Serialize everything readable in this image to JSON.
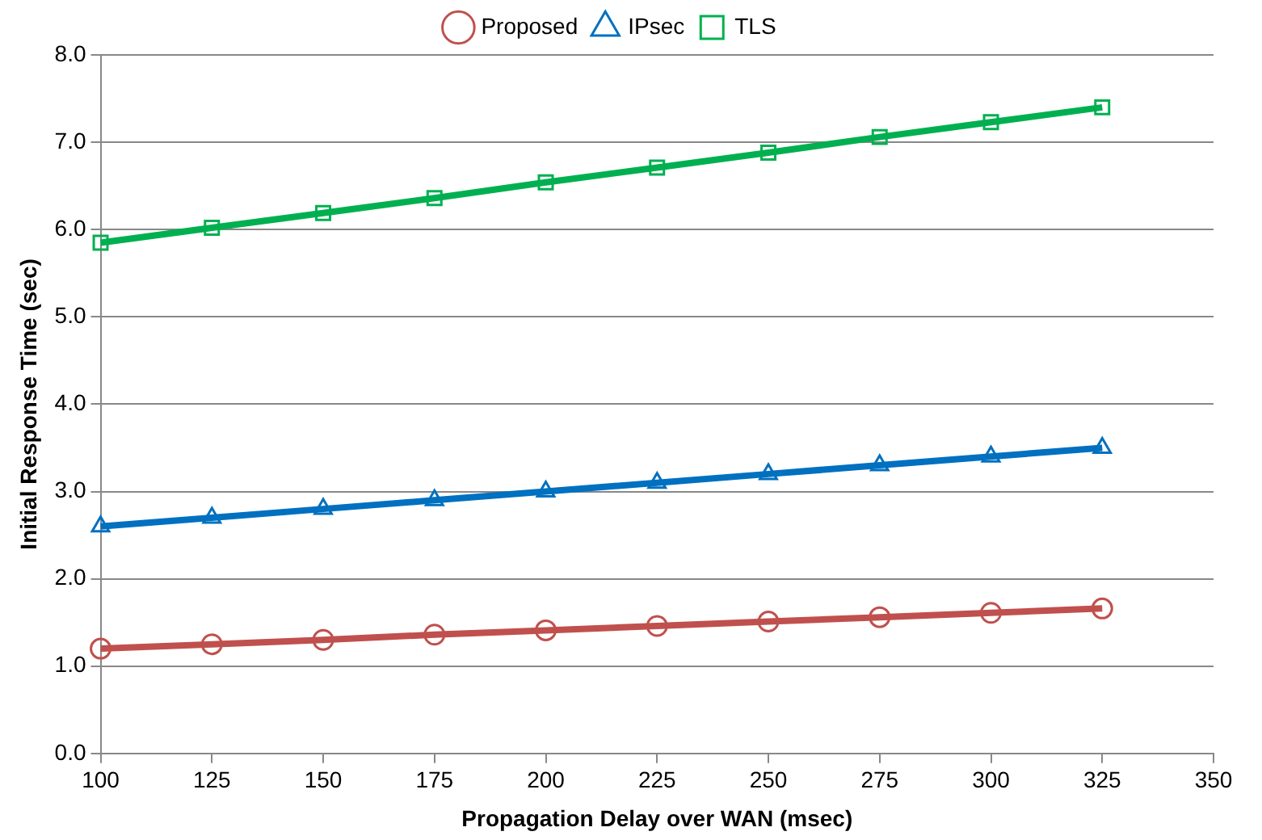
{
  "chart_data": {
    "type": "line",
    "xlabel": "Propagation Delay over WAN (msec)",
    "ylabel": "Initial Response Time (sec)",
    "x": [
      100,
      125,
      150,
      175,
      200,
      225,
      250,
      275,
      300,
      325
    ],
    "series": [
      {
        "name": "Proposed",
        "color": "#c0504d",
        "marker": "circle",
        "values": [
          1.2,
          1.25,
          1.3,
          1.36,
          1.41,
          1.46,
          1.51,
          1.56,
          1.61,
          1.66
        ]
      },
      {
        "name": "IPsec",
        "color": "#0070c0",
        "marker": "triangle",
        "values": [
          2.6,
          2.7,
          2.8,
          2.9,
          3.0,
          3.1,
          3.2,
          3.3,
          3.4,
          3.5
        ]
      },
      {
        "name": "TLS",
        "color": "#00b050",
        "marker": "square",
        "values": [
          5.85,
          6.02,
          6.19,
          6.36,
          6.54,
          6.71,
          6.88,
          7.06,
          7.23,
          7.4
        ]
      }
    ],
    "xlim": [
      100,
      350
    ],
    "xticks": [
      100,
      125,
      150,
      175,
      200,
      225,
      250,
      275,
      300,
      325,
      350
    ],
    "ylim": [
      0,
      8
    ],
    "yticks": [
      {
        "value": 0,
        "label": "0.0"
      },
      {
        "value": 1,
        "label": "1.0"
      },
      {
        "value": 2,
        "label": "2.0"
      },
      {
        "value": 3,
        "label": "3.0"
      },
      {
        "value": 4,
        "label": "4.0"
      },
      {
        "value": 5,
        "label": "5.0"
      },
      {
        "value": 6,
        "label": "6.0"
      },
      {
        "value": 7,
        "label": "7.0"
      },
      {
        "value": 8,
        "label": "8.0"
      }
    ],
    "grid": "y",
    "legend": "top"
  }
}
